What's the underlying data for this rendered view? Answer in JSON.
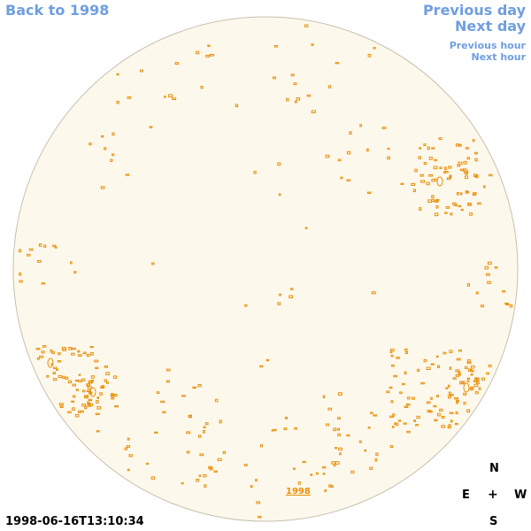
{
  "nav": {
    "back": "Back to 1998",
    "previous_day": "Previous day",
    "next_day": "Next day",
    "previous_hour": "Previous hour",
    "next_hour": "Next hour"
  },
  "disk": {
    "fill_color": "#fdf8ec",
    "outline_color": "#c8c0b0",
    "feature_color": "#e8900a",
    "year_label": "1998"
  },
  "compass": {
    "north": "N",
    "east": "E",
    "center": "+",
    "west": "W",
    "south": "S"
  },
  "timestamp": "1998-06-16T13:10:34"
}
